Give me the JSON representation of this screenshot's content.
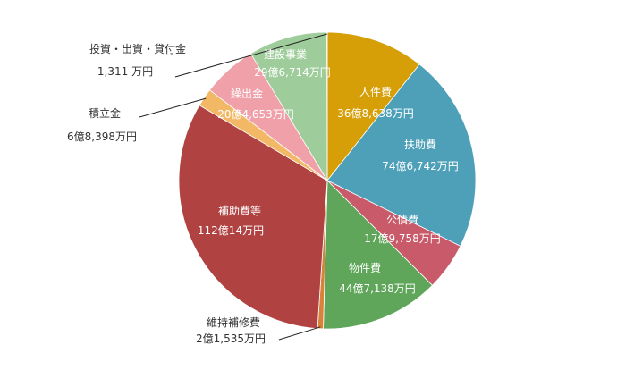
{
  "chart_data": {
    "type": "pie",
    "title": "",
    "start": "top, clockwise",
    "slices": [
      {
        "name": "人件費",
        "value_text": "36億8,638万円",
        "value_oku": 36.8638,
        "color": "#D69E07",
        "label": "inside"
      },
      {
        "name": "扶助費",
        "value_text": "74億6,742万円",
        "value_oku": 74.6742,
        "color": "#4EA0B8",
        "label": "inside"
      },
      {
        "name": "公債費",
        "value_text": "17億9,758万円",
        "value_oku": 17.9758,
        "color": "#C85A6A",
        "label": "inside"
      },
      {
        "name": "物件費",
        "value_text": "44億7,138万円",
        "value_oku": 44.7138,
        "color": "#5FA65A",
        "label": "inside"
      },
      {
        "name": "維持補修費",
        "value_text": "2億1,535万円",
        "value_oku": 2.1535,
        "color": "#D8823A",
        "label": "outside"
      },
      {
        "name": "補助費等",
        "value_text": "112億14万円",
        "value_oku": 112.0014,
        "color": "#B04242",
        "label": "inside"
      },
      {
        "name": "積立金",
        "value_text": "6億8,398万円",
        "value_oku": 6.8398,
        "color": "#F2B866",
        "label": "outside"
      },
      {
        "name": "繰出金",
        "value_text": "20億4,653万円",
        "value_oku": 20.4653,
        "color": "#EFA0A8",
        "label": "inside"
      },
      {
        "name": "建設事業",
        "value_text": "29億6,714万円",
        "value_oku": 29.6714,
        "color": "#9ECC9A",
        "label": "inside"
      },
      {
        "name": "投資・出資・貸付金",
        "value_text": "1,311 万円",
        "value_oku": 0.1311,
        "color": "#F4A07A",
        "label": "outside"
      }
    ]
  }
}
